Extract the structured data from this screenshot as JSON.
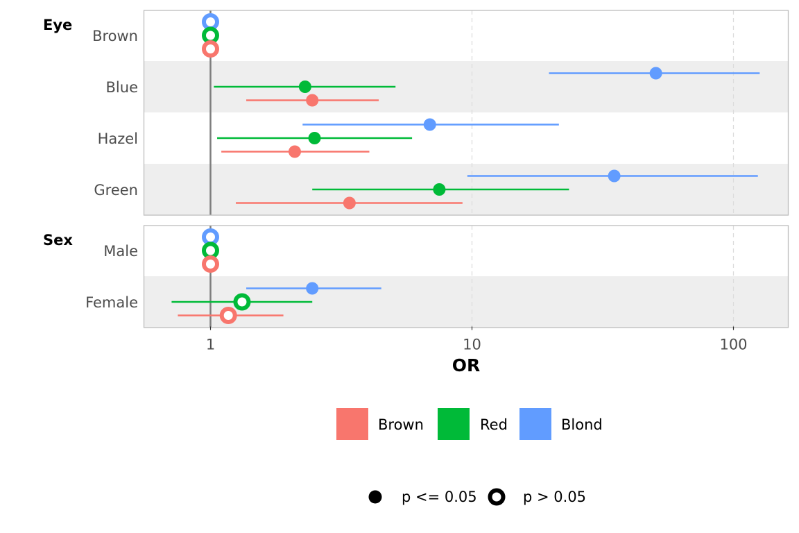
{
  "chart_data": {
    "type": "forest",
    "xlabel": "OR",
    "x_scale": "log10",
    "xlim": [
      0.6,
      140
    ],
    "x_ticks": [
      {
        "value": 1,
        "label": "1"
      },
      {
        "value": 10,
        "label": "10"
      },
      {
        "value": 100,
        "label": "100"
      }
    ],
    "reference_line": 1,
    "legend": {
      "position": "bottom",
      "hair": [
        {
          "name": "Brown",
          "color": "#F8766D"
        },
        {
          "name": "Red",
          "color": "#00BA38"
        },
        {
          "name": "Blond",
          "color": "#619CFF"
        }
      ],
      "significance": [
        {
          "label": "p <= 0.05",
          "shape": "filled"
        },
        {
          "label": "p > 0.05",
          "shape": "hollow"
        }
      ]
    },
    "panels": [
      {
        "title": "Eye",
        "rows": [
          {
            "label": "Brown",
            "points": [
              {
                "group": "Blond",
                "or": 1,
                "lo": null,
                "hi": null,
                "sig": false
              },
              {
                "group": "Red",
                "or": 1,
                "lo": null,
                "hi": null,
                "sig": false
              },
              {
                "group": "Brown",
                "or": 1,
                "lo": null,
                "hi": null,
                "sig": false
              }
            ]
          },
          {
            "label": "Blue",
            "points": [
              {
                "group": "Blond",
                "or": 50.5,
                "lo": 19.7,
                "hi": 126,
                "sig": true
              },
              {
                "group": "Red",
                "or": 2.3,
                "lo": 1.03,
                "hi": 5.1,
                "sig": true
              },
              {
                "group": "Brown",
                "or": 2.45,
                "lo": 1.37,
                "hi": 4.4,
                "sig": true
              }
            ]
          },
          {
            "label": "Hazel",
            "points": [
              {
                "group": "Blond",
                "or": 6.9,
                "lo": 2.25,
                "hi": 21.5,
                "sig": true
              },
              {
                "group": "Red",
                "or": 2.5,
                "lo": 1.06,
                "hi": 5.9,
                "sig": true
              },
              {
                "group": "Brown",
                "or": 2.1,
                "lo": 1.1,
                "hi": 4.05,
                "sig": true
              }
            ]
          },
          {
            "label": "Green",
            "points": [
              {
                "group": "Blond",
                "or": 35,
                "lo": 9.6,
                "hi": 124,
                "sig": true
              },
              {
                "group": "Red",
                "or": 7.5,
                "lo": 2.45,
                "hi": 23.5,
                "sig": true
              },
              {
                "group": "Brown",
                "or": 3.4,
                "lo": 1.25,
                "hi": 9.2,
                "sig": true
              }
            ]
          }
        ]
      },
      {
        "title": "Sex",
        "rows": [
          {
            "label": "Male",
            "points": [
              {
                "group": "Blond",
                "or": 1,
                "lo": null,
                "hi": null,
                "sig": false
              },
              {
                "group": "Red",
                "or": 1,
                "lo": null,
                "hi": null,
                "sig": false
              },
              {
                "group": "Brown",
                "or": 1,
                "lo": null,
                "hi": null,
                "sig": false
              }
            ]
          },
          {
            "label": "Female",
            "points": [
              {
                "group": "Blond",
                "or": 2.45,
                "lo": 1.37,
                "hi": 4.5,
                "sig": true
              },
              {
                "group": "Red",
                "or": 1.32,
                "lo": 0.71,
                "hi": 2.45,
                "sig": false
              },
              {
                "group": "Brown",
                "or": 1.17,
                "lo": 0.75,
                "hi": 1.9,
                "sig": false
              }
            ]
          }
        ]
      }
    ]
  }
}
